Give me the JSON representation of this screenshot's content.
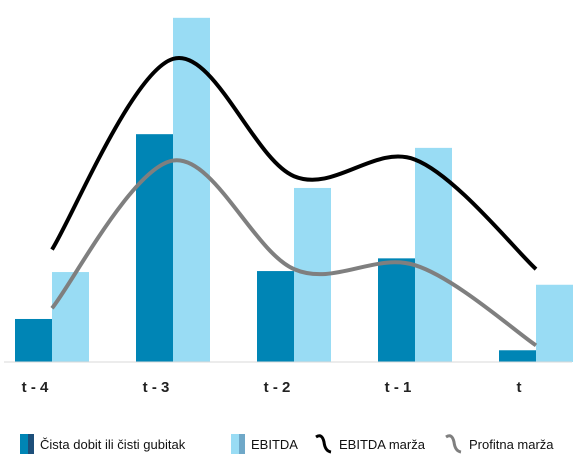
{
  "chart_data": {
    "type": "bar",
    "categories": [
      "t - 4",
      "t - 3",
      "t - 2",
      "t - 1",
      "t"
    ],
    "series": [
      {
        "name": "Čista dobit ili čisti gubitak",
        "kind": "bar",
        "color": "#0085b5",
        "values": [
          44,
          233,
          93,
          106,
          12
        ]
      },
      {
        "name": "EBITDA",
        "kind": "bar",
        "color": "#99dcf4",
        "values": [
          92,
          352,
          178,
          219,
          79
        ]
      },
      {
        "name": "EBITDA marža",
        "kind": "line",
        "color": "#000000",
        "values": [
          115,
          310,
          190,
          207,
          95
        ]
      },
      {
        "name": "Profitna marža",
        "kind": "line",
        "color": "#7f7f7f",
        "values": [
          55,
          206,
          95,
          99,
          17
        ]
      }
    ],
    "ylim": [
      0,
      360
    ],
    "xlabel": "",
    "ylabel": "",
    "grid": false,
    "legend_position": "bottom"
  }
}
